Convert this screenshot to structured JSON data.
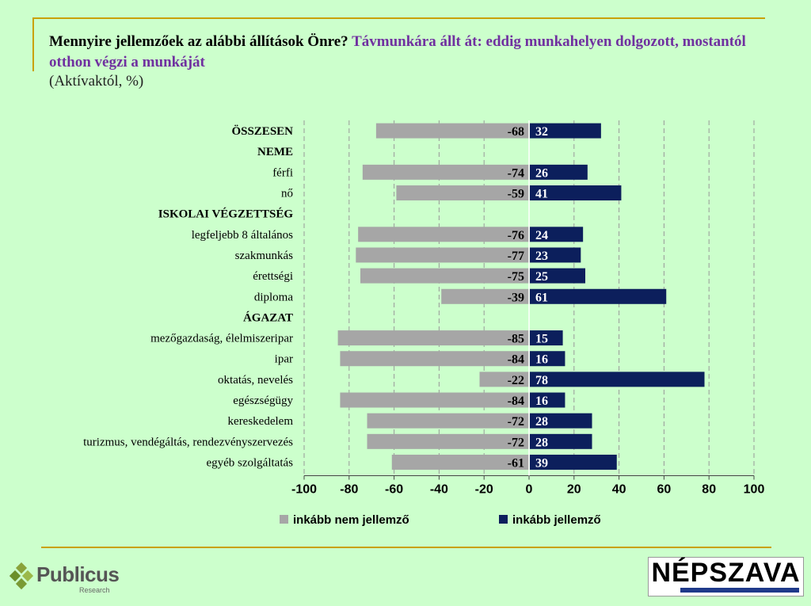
{
  "header": {
    "title_main": "Mennyire jellemzőek az alábbi állítások Önre?",
    "title_highlight": "Távmunkára állt át: eddig munkahelyen dolgozott, mostantól otthon végzi a munkáját",
    "subtitle": "(Aktívaktól, %)"
  },
  "colors": {
    "negative": "#a6a6a6",
    "positive": "#0c1f5c",
    "accent_line": "#c9a100",
    "title_highlight": "#7030a0"
  },
  "chart_data": {
    "type": "bar",
    "orientation": "horizontal-diverging",
    "xlim": [
      -100,
      100
    ],
    "xticks": [
      -100,
      -80,
      -60,
      -40,
      -20,
      0,
      20,
      40,
      60,
      80,
      100
    ],
    "grid": true,
    "legend_position": "bottom",
    "rows": [
      {
        "label": "ÖSSZESEN",
        "header": true,
        "neg": -68,
        "pos": 32
      },
      {
        "label": "NEME",
        "header": true,
        "neg": null,
        "pos": null
      },
      {
        "label": "férfi",
        "header": false,
        "neg": -74,
        "pos": 26
      },
      {
        "label": "nő",
        "header": false,
        "neg": -59,
        "pos": 41
      },
      {
        "label": "ISKOLAI VÉGZETTSÉG",
        "header": true,
        "neg": null,
        "pos": null
      },
      {
        "label": "legfeljebb 8 általános",
        "header": false,
        "neg": -76,
        "pos": 24
      },
      {
        "label": "szakmunkás",
        "header": false,
        "neg": -77,
        "pos": 23
      },
      {
        "label": "érettségi",
        "header": false,
        "neg": -75,
        "pos": 25
      },
      {
        "label": "diploma",
        "header": false,
        "neg": -39,
        "pos": 61
      },
      {
        "label": "ÁGAZAT",
        "header": true,
        "neg": null,
        "pos": null
      },
      {
        "label": "mezőgazdaság, élelmiszeripar",
        "header": false,
        "neg": -85,
        "pos": 15
      },
      {
        "label": "ipar",
        "header": false,
        "neg": -84,
        "pos": 16
      },
      {
        "label": "oktatás, nevelés",
        "header": false,
        "neg": -22,
        "pos": 78
      },
      {
        "label": "egészségügy",
        "header": false,
        "neg": -84,
        "pos": 16
      },
      {
        "label": "kereskedelem",
        "header": false,
        "neg": -72,
        "pos": 28
      },
      {
        "label": "turizmus, vendégáltás, rendezvényszervezés",
        "header": false,
        "neg": -72,
        "pos": 28
      },
      {
        "label": "egyéb szolgáltatás",
        "header": false,
        "neg": -61,
        "pos": 39
      }
    ],
    "series": [
      {
        "name": "inkább nem jellemző",
        "key": "neg"
      },
      {
        "name": "inkább jellemző",
        "key": "pos"
      }
    ]
  },
  "logos": {
    "left": "Publicus",
    "left_sub": "Research",
    "right": "NÉPSZAVA"
  }
}
